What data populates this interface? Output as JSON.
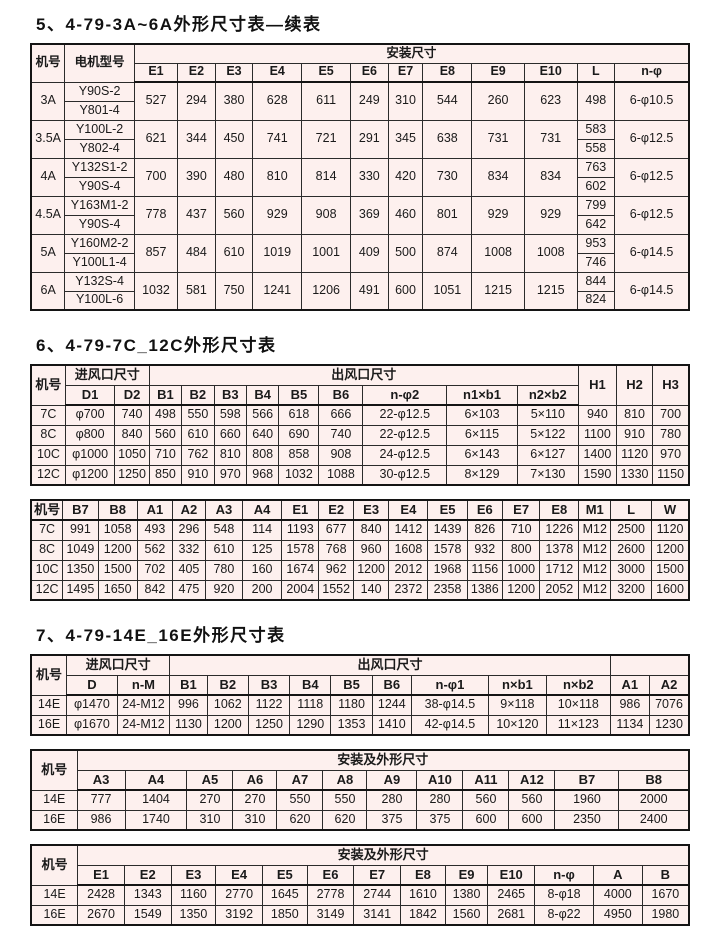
{
  "colors": {
    "cell_bg": "#fdf0ee",
    "border": "#141414",
    "text": "#1a1a1a",
    "page_bg": "#ffffff"
  },
  "sections": [
    {
      "title": "5、4-79-3A~6A外形尺寸表—续表",
      "tables": [
        {
          "widths": [
            36,
            74,
            46,
            40,
            40,
            52,
            52,
            40,
            37,
            52,
            56,
            56,
            40,
            79
          ],
          "header": [
            [
              {
                "t": "机号",
                "rs": 2
              },
              {
                "t": "电机型号",
                "rs": 2
              },
              {
                "t": "安装尺寸",
                "cs": 12
              }
            ],
            [
              "E1",
              "E2",
              "E3",
              "E4",
              "E5",
              "E6",
              "E7",
              "E8",
              "E9",
              "E10",
              "L",
              "n-φ"
            ]
          ],
          "rows": [
            [
              {
                "t": "3A",
                "rs": 2
              },
              "Y90S-2",
              {
                "t": "527",
                "rs": 2
              },
              {
                "t": "294",
                "rs": 2
              },
              {
                "t": "380",
                "rs": 2
              },
              {
                "t": "628",
                "rs": 2
              },
              {
                "t": "611",
                "rs": 2
              },
              {
                "t": "249",
                "rs": 2
              },
              {
                "t": "310",
                "rs": 2
              },
              {
                "t": "544",
                "rs": 2
              },
              {
                "t": "260",
                "rs": 2
              },
              {
                "t": "623",
                "rs": 2
              },
              {
                "t": "498",
                "rs": 2
              },
              {
                "t": "6-φ10.5",
                "rs": 2
              }
            ],
            [
              "Y801-4"
            ],
            [
              {
                "t": "3.5A",
                "rs": 2
              },
              "Y100L-2",
              {
                "t": "621",
                "rs": 2
              },
              {
                "t": "344",
                "rs": 2
              },
              {
                "t": "450",
                "rs": 2
              },
              {
                "t": "741",
                "rs": 2
              },
              {
                "t": "721",
                "rs": 2
              },
              {
                "t": "291",
                "rs": 2
              },
              {
                "t": "345",
                "rs": 2
              },
              {
                "t": "638",
                "rs": 2
              },
              {
                "t": "731",
                "rs": 2
              },
              {
                "t": "731",
                "rs": 2
              },
              "583",
              {
                "t": "6-φ12.5",
                "rs": 2
              }
            ],
            [
              "Y802-4",
              "558"
            ],
            [
              {
                "t": "4A",
                "rs": 2
              },
              "Y132S1-2",
              {
                "t": "700",
                "rs": 2
              },
              {
                "t": "390",
                "rs": 2
              },
              {
                "t": "480",
                "rs": 2
              },
              {
                "t": "810",
                "rs": 2
              },
              {
                "t": "814",
                "rs": 2
              },
              {
                "t": "330",
                "rs": 2
              },
              {
                "t": "420",
                "rs": 2
              },
              {
                "t": "730",
                "rs": 2
              },
              {
                "t": "834",
                "rs": 2
              },
              {
                "t": "834",
                "rs": 2
              },
              "763",
              {
                "t": "6-φ12.5",
                "rs": 2
              }
            ],
            [
              "Y90S-4",
              "602"
            ],
            [
              {
                "t": "4.5A",
                "rs": 2
              },
              "Y163M1-2",
              {
                "t": "778",
                "rs": 2
              },
              {
                "t": "437",
                "rs": 2
              },
              {
                "t": "560",
                "rs": 2
              },
              {
                "t": "929",
                "rs": 2
              },
              {
                "t": "908",
                "rs": 2
              },
              {
                "t": "369",
                "rs": 2
              },
              {
                "t": "460",
                "rs": 2
              },
              {
                "t": "801",
                "rs": 2
              },
              {
                "t": "929",
                "rs": 2
              },
              {
                "t": "929",
                "rs": 2
              },
              "799",
              {
                "t": "6-φ12.5",
                "rs": 2
              }
            ],
            [
              "Y90S-4",
              "642"
            ],
            [
              {
                "t": "5A",
                "rs": 2
              },
              "Y160M2-2",
              {
                "t": "857",
                "rs": 2
              },
              {
                "t": "484",
                "rs": 2
              },
              {
                "t": "610",
                "rs": 2
              },
              {
                "t": "1019",
                "rs": 2
              },
              {
                "t": "1001",
                "rs": 2
              },
              {
                "t": "409",
                "rs": 2
              },
              {
                "t": "500",
                "rs": 2
              },
              {
                "t": "874",
                "rs": 2
              },
              {
                "t": "1008",
                "rs": 2
              },
              {
                "t": "1008",
                "rs": 2
              },
              "953",
              {
                "t": "6-φ14.5",
                "rs": 2
              }
            ],
            [
              "Y100L1-4",
              "746"
            ],
            [
              {
                "t": "6A",
                "rs": 2
              },
              "Y132S-4",
              {
                "t": "1032",
                "rs": 2
              },
              {
                "t": "581",
                "rs": 2
              },
              {
                "t": "750",
                "rs": 2
              },
              {
                "t": "1241",
                "rs": 2
              },
              {
                "t": "1206",
                "rs": 2
              },
              {
                "t": "491",
                "rs": 2
              },
              {
                "t": "600",
                "rs": 2
              },
              {
                "t": "1051",
                "rs": 2
              },
              {
                "t": "1215",
                "rs": 2
              },
              {
                "t": "1215",
                "rs": 2
              },
              "844",
              {
                "t": "6-φ14.5",
                "rs": 2
              }
            ],
            [
              "Y100L-6",
              "824"
            ]
          ]
        }
      ]
    },
    {
      "title": "6、4-79-7C_12C外形尺寸表",
      "tables": [
        {
          "widths": [
            36,
            52,
            36,
            34,
            34,
            34,
            34,
            42,
            46,
            88,
            74,
            64,
            40,
            38,
            38
          ],
          "header": [
            [
              {
                "t": "机号",
                "rs": 2
              },
              {
                "t": "进风口尺寸",
                "cs": 2
              },
              {
                "t": "出风口尺寸",
                "cs": 9
              },
              {
                "t": "H1",
                "rs": 2
              },
              {
                "t": "H2",
                "rs": 2
              },
              {
                "t": "H3",
                "rs": 2
              }
            ],
            [
              "D1",
              "D2",
              "B1",
              "B2",
              "B3",
              "B4",
              "B5",
              "B6",
              "n-φ2",
              "n1×b1",
              "n2×b2"
            ]
          ],
          "rows": [
            [
              "7C",
              "φ700",
              "740",
              "498",
              "550",
              "598",
              "566",
              "618",
              "666",
              "22-φ12.5",
              "6×103",
              "5×110",
              "940",
              "810",
              "700"
            ],
            [
              "8C",
              "φ800",
              "840",
              "560",
              "610",
              "660",
              "640",
              "690",
              "740",
              "22-φ12.5",
              "6×115",
              "5×122",
              "1100",
              "910",
              "780"
            ],
            [
              "10C",
              "φ1000",
              "1050",
              "710",
              "762",
              "810",
              "808",
              "858",
              "908",
              "24-φ12.5",
              "6×143",
              "6×127",
              "1400",
              "1120",
              "970"
            ],
            [
              "12C",
              "φ1200",
              "1250",
              "850",
              "910",
              "970",
              "968",
              "1032",
              "1088",
              "30-φ12.5",
              "8×129",
              "7×130",
              "1590",
              "1330",
              "1150"
            ]
          ]
        },
        {
          "widths": [
            34,
            38,
            42,
            38,
            35,
            40,
            42,
            40,
            37,
            38,
            42,
            42,
            38,
            40,
            42,
            34,
            44,
            40
          ],
          "header": [
            [
              "机号",
              "B7",
              "B8",
              "A1",
              "A2",
              "A3",
              "A4",
              "E1",
              "E2",
              "E3",
              "E4",
              "E5",
              "E6",
              "E7",
              "E8",
              "M1",
              "L",
              "W"
            ]
          ],
          "rows": [
            [
              "7C",
              "991",
              "1058",
              "493",
              "296",
              "548",
              "114",
              "1193",
              "677",
              "840",
              "1412",
              "1439",
              "826",
              "710",
              "1226",
              "M12",
              "2500",
              "1120"
            ],
            [
              "8C",
              "1049",
              "1200",
              "562",
              "332",
              "610",
              "125",
              "1578",
              "768",
              "960",
              "1608",
              "1578",
              "932",
              "800",
              "1378",
              "M12",
              "2600",
              "1200"
            ],
            [
              "10C",
              "1350",
              "1500",
              "702",
              "405",
              "780",
              "160",
              "1674",
              "962",
              "1200",
              "2012",
              "1968",
              "1156",
              "1000",
              "1712",
              "M12",
              "3000",
              "1500"
            ],
            [
              "12C",
              "1495",
              "1650",
              "842",
              "475",
              "920",
              "200",
              "2004",
              "1552",
              "140",
              "2372",
              "2358",
              "1386",
              "1200",
              "2052",
              "M12",
              "3200",
              "1600"
            ]
          ]
        }
      ]
    },
    {
      "title": "7、4-79-14E_16E外形尺寸表",
      "tables": [
        {
          "widths": [
            38,
            54,
            56,
            40,
            44,
            44,
            44,
            44,
            42,
            82,
            62,
            68,
            42,
            42
          ],
          "header": [
            [
              {
                "t": "机号",
                "rs": 2
              },
              {
                "t": "进风口尺寸",
                "cs": 2
              },
              {
                "t": "出风口尺寸",
                "cs": 9
              },
              {
                "t": "",
                "cs": 2
              }
            ],
            [
              "D",
              "n-M",
              "B1",
              "B2",
              "B3",
              "B4",
              "B5",
              "B6",
              "n-φ1",
              "n×b1",
              "n×b2",
              "A1",
              "A2"
            ]
          ],
          "rows": [
            [
              "14E",
              "φ1470",
              "24-M12",
              "996",
              "1062",
              "1122",
              "1118",
              "1180",
              "1244",
              "38-φ14.5",
              "9×118",
              "10×118",
              "986",
              "7076"
            ],
            [
              "16E",
              "φ1670",
              "24-M12",
              "1130",
              "1200",
              "1250",
              "1290",
              "1353",
              "1410",
              "42-φ14.5",
              "10×120",
              "11×123",
              "1134",
              "1230"
            ]
          ]
        },
        {
          "widths": [
            46,
            48,
            62,
            46,
            44,
            46,
            44,
            50,
            46,
            46,
            46,
            64,
            70
          ],
          "header": [
            [
              {
                "t": "机号",
                "rs": 2
              },
              {
                "t": "安装及外形尺寸",
                "cs": 12
              }
            ],
            [
              "A3",
              "A4",
              "A5",
              "A6",
              "A7",
              "A8",
              "A9",
              "A10",
              "A11",
              "A12",
              "B7",
              "B8"
            ]
          ],
          "rows": [
            [
              "14E",
              "777",
              "1404",
              "270",
              "270",
              "550",
              "550",
              "280",
              "280",
              "560",
              "560",
              "1960",
              "2000"
            ],
            [
              "16E",
              "986",
              "1740",
              "310",
              "310",
              "620",
              "620",
              "375",
              "375",
              "600",
              "600",
              "2350",
              "2400"
            ]
          ]
        },
        {
          "widths": [
            46,
            46,
            46,
            44,
            46,
            44,
            46,
            46,
            44,
            42,
            46,
            58,
            48,
            46
          ],
          "header": [
            [
              {
                "t": "机号",
                "rs": 2
              },
              {
                "t": "安装及外形尺寸",
                "cs": 13
              }
            ],
            [
              "E1",
              "E2",
              "E3",
              "E4",
              "E5",
              "E6",
              "E7",
              "E8",
              "E9",
              "E10",
              "n-φ",
              "A",
              "B"
            ]
          ],
          "rows": [
            [
              "14E",
              "2428",
              "1343",
              "1160",
              "2770",
              "1645",
              "2778",
              "2744",
              "1610",
              "1380",
              "2465",
              "8-φ18",
              "4000",
              "1670"
            ],
            [
              "16E",
              "2670",
              "1549",
              "1350",
              "3192",
              "1850",
              "3149",
              "3141",
              "1842",
              "1560",
              "2681",
              "8-φ22",
              "4950",
              "1980"
            ]
          ]
        }
      ]
    }
  ]
}
